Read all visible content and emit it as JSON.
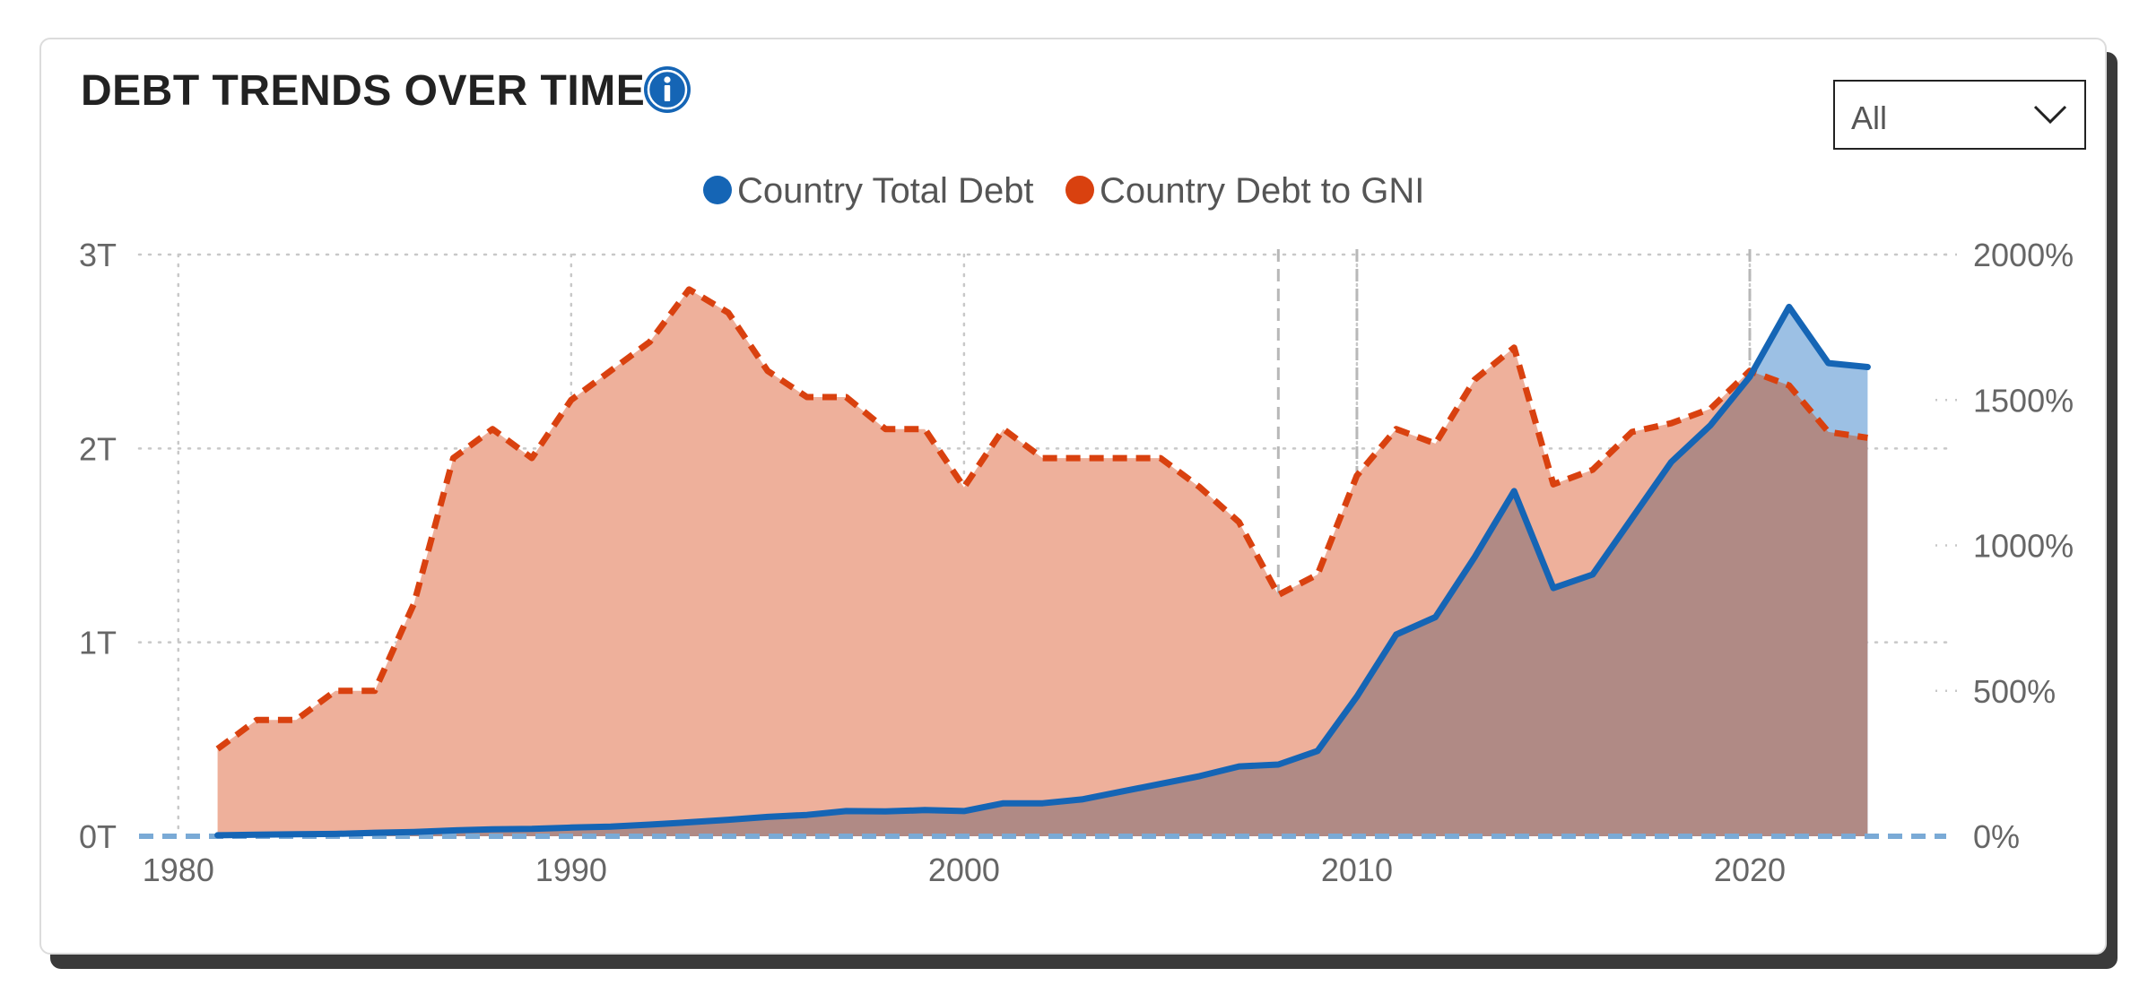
{
  "header": {
    "title": "DEBT TRENDS OVER TIME",
    "info_icon": "info-icon",
    "filter": {
      "selected": "All",
      "icon": "chevron-down-icon"
    }
  },
  "colors": {
    "total_debt": "#1565b5",
    "debt_to_gni": "#d9410f",
    "gni_fill": "#eeb09b",
    "overlap_fill": "#b08a85",
    "total_fill": "#9cc0e4",
    "baseline": "#7aaad6"
  },
  "chart_data": {
    "type": "area",
    "x_range": [
      1979,
      2025
    ],
    "y_left_range": [
      0,
      3
    ],
    "y_right_range": [
      0,
      2000
    ],
    "y_left_ticks": [
      {
        "value": 0,
        "label": "0T"
      },
      {
        "value": 1,
        "label": "1T"
      },
      {
        "value": 2,
        "label": "2T"
      },
      {
        "value": 3,
        "label": "3T"
      }
    ],
    "y_right_ticks": [
      {
        "value": 0,
        "label": "0%"
      },
      {
        "value": 500,
        "label": "500%"
      },
      {
        "value": 1000,
        "label": "1000%"
      },
      {
        "value": 1500,
        "label": "1500%"
      },
      {
        "value": 2000,
        "label": "2000%"
      }
    ],
    "x_ticks": [
      {
        "value": 1980,
        "label": "1980"
      },
      {
        "value": 1990,
        "label": "1990"
      },
      {
        "value": 2000,
        "label": "2000"
      },
      {
        "value": 2010,
        "label": "2010"
      },
      {
        "value": 2020,
        "label": "2020"
      }
    ],
    "dashed_vlines": [
      2008,
      2010,
      2020
    ],
    "grid": true,
    "legend_position": "top-center",
    "series": [
      {
        "name": "Country Total Debt",
        "axis": "left",
        "style": "solid",
        "x": [
          1981,
          1982,
          1983,
          1984,
          1985,
          1986,
          1987,
          1988,
          1989,
          1990,
          1991,
          1992,
          1993,
          1994,
          1995,
          1996,
          1997,
          1998,
          1999,
          2000,
          2001,
          2002,
          2003,
          2004,
          2005,
          2006,
          2007,
          2008,
          2009,
          2010,
          2011,
          2012,
          2013,
          2014,
          2015,
          2016,
          2017,
          2018,
          2019,
          2020,
          2021,
          2022,
          2023
        ],
        "values": [
          0.005,
          0.008,
          0.01,
          0.012,
          0.018,
          0.022,
          0.03,
          0.036,
          0.038,
          0.045,
          0.05,
          0.06,
          0.072,
          0.085,
          0.1,
          0.11,
          0.13,
          0.128,
          0.135,
          0.13,
          0.17,
          0.17,
          0.19,
          0.23,
          0.27,
          0.31,
          0.36,
          0.37,
          0.44,
          0.72,
          1.04,
          1.13,
          1.44,
          1.78,
          1.28,
          1.35,
          1.64,
          1.93,
          2.12,
          2.37,
          2.73,
          2.44,
          2.42
        ]
      },
      {
        "name": "Country Debt to GNI",
        "axis": "right",
        "style": "dashed",
        "x": [
          1981,
          1982,
          1983,
          1984,
          1985,
          1986,
          1987,
          1988,
          1989,
          1990,
          1991,
          1992,
          1993,
          1994,
          1995,
          1996,
          1997,
          1998,
          1999,
          2000,
          2001,
          2002,
          2003,
          2004,
          2005,
          2006,
          2007,
          2008,
          2009,
          2010,
          2011,
          2012,
          2013,
          2014,
          2015,
          2016,
          2017,
          2018,
          2019,
          2020,
          2021,
          2022,
          2023
        ],
        "values": [
          300,
          400,
          400,
          500,
          500,
          800,
          1300,
          1400,
          1300,
          1500,
          1600,
          1700,
          1880,
          1800,
          1600,
          1510,
          1510,
          1400,
          1400,
          1200,
          1400,
          1300,
          1300,
          1300,
          1300,
          1200,
          1080,
          830,
          900,
          1240,
          1400,
          1350,
          1570,
          1680,
          1210,
          1260,
          1390,
          1420,
          1470,
          1600,
          1550,
          1390,
          1370
        ]
      }
    ]
  }
}
